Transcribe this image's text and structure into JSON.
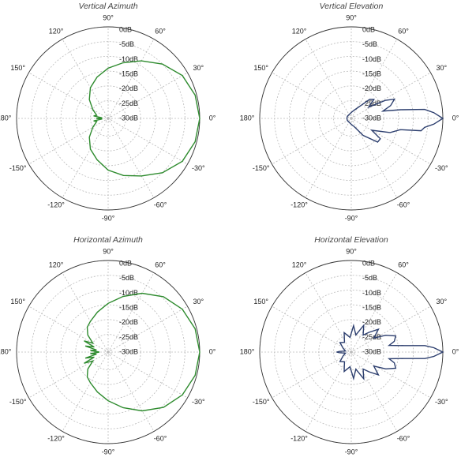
{
  "chart_data": [
    {
      "type": "polar",
      "title": "Vertical Azimuth",
      "color": "#2e8b2e",
      "rlim": [
        -31,
        0
      ],
      "rticks": [
        {
          "value": 0,
          "label": "0dB"
        },
        {
          "value": -5,
          "label": "-5dB"
        },
        {
          "value": -10,
          "label": "-10dB"
        },
        {
          "value": -15,
          "label": "-15dB"
        },
        {
          "value": -20,
          "label": "-20dB"
        },
        {
          "value": -25,
          "label": "-25dB"
        },
        {
          "value": -30,
          "label": "-30dB"
        }
      ],
      "thetaticks": [
        {
          "value": 90,
          "label": "90°"
        },
        {
          "value": 60,
          "label": "60°"
        },
        {
          "value": 30,
          "label": "30°"
        },
        {
          "value": 0,
          "label": "0°"
        },
        {
          "value": -30,
          "label": "-30°"
        },
        {
          "value": -60,
          "label": "-60°"
        },
        {
          "value": -90,
          "label": "-90°"
        },
        {
          "value": -120,
          "label": "-120°"
        },
        {
          "value": -150,
          "label": "-150°"
        },
        {
          "value": 180,
          "label": "180°"
        },
        {
          "value": 150,
          "label": "150°"
        },
        {
          "value": 120,
          "label": "120°"
        }
      ],
      "theta": [
        0,
        15,
        30,
        45,
        60,
        75,
        90,
        105,
        120,
        135,
        150,
        165,
        170,
        175,
        180,
        185,
        190,
        195,
        210,
        225,
        240,
        255,
        270,
        285,
        300,
        315,
        330,
        345
      ],
      "values": [
        0,
        -0.5,
        -2,
        -5,
        -8.5,
        -11.5,
        -14,
        -16.5,
        -19,
        -22,
        -25,
        -27,
        -26,
        -29,
        -27,
        -29,
        -26,
        -27,
        -25,
        -22,
        -19,
        -16.5,
        -13.5,
        -11,
        -8.5,
        -5,
        -2,
        -0.5
      ]
    },
    {
      "type": "polar",
      "title": "Vertical Elevation",
      "color": "#2c3e6e",
      "rlim": [
        -31,
        0
      ],
      "rticks": [
        {
          "value": 0,
          "label": "0dB"
        },
        {
          "value": -5,
          "label": "-5dB"
        },
        {
          "value": -10,
          "label": "-10dB"
        },
        {
          "value": -15,
          "label": "-15dB"
        },
        {
          "value": -20,
          "label": "-20dB"
        },
        {
          "value": -25,
          "label": "-25dB"
        },
        {
          "value": -30,
          "label": "-30dB"
        }
      ],
      "thetaticks": [
        {
          "value": 90,
          "label": "90°"
        },
        {
          "value": 60,
          "label": "60°"
        },
        {
          "value": 30,
          "label": "30°"
        },
        {
          "value": 0,
          "label": "0°"
        },
        {
          "value": -30,
          "label": "-30°"
        },
        {
          "value": -60,
          "label": "-60°"
        },
        {
          "value": -90,
          "label": "-90°"
        },
        {
          "value": -120,
          "label": "-120°"
        },
        {
          "value": -150,
          "label": "-150°"
        },
        {
          "value": 180,
          "label": "180°"
        },
        {
          "value": 150,
          "label": "150°"
        },
        {
          "value": 120,
          "label": "120°"
        }
      ],
      "theta": [
        0,
        4,
        7,
        10,
        13,
        18,
        24,
        28,
        33,
        40,
        46,
        55,
        70,
        90,
        120,
        150,
        180,
        210,
        240,
        270,
        290,
        305,
        318,
        325,
        330,
        340,
        347,
        350,
        353,
        356
      ],
      "values": [
        0,
        -3,
        -6,
        -14,
        -20,
        -17,
        -15,
        -18,
        -24,
        -21,
        -22,
        -26,
        -28,
        -29,
        -29.5,
        -29.5,
        -29.5,
        -29.5,
        -29.5,
        -29,
        -28,
        -24,
        -19,
        -19,
        -23,
        -17,
        -14,
        -7,
        -6,
        -3
      ]
    },
    {
      "type": "polar",
      "title": "Horizontal Azimuth",
      "color": "#2e8b2e",
      "rlim": [
        -31,
        0
      ],
      "rticks": [
        {
          "value": 0,
          "label": "0dB"
        },
        {
          "value": -5,
          "label": "-5dB"
        },
        {
          "value": -10,
          "label": "-10dB"
        },
        {
          "value": -15,
          "label": "-15dB"
        },
        {
          "value": -20,
          "label": "-20dB"
        },
        {
          "value": -25,
          "label": "-25dB"
        },
        {
          "value": -30,
          "label": "-30dB"
        }
      ],
      "thetaticks": [
        {
          "value": 90,
          "label": "90°"
        },
        {
          "value": 60,
          "label": "60°"
        },
        {
          "value": 30,
          "label": "30°"
        },
        {
          "value": 0,
          "label": "0°"
        },
        {
          "value": -30,
          "label": "-30°"
        },
        {
          "value": -60,
          "label": "-60°"
        },
        {
          "value": -90,
          "label": "-90°"
        },
        {
          "value": -120,
          "label": "-120°"
        },
        {
          "value": -150,
          "label": "-150°"
        },
        {
          "value": 180,
          "label": "180°"
        },
        {
          "value": 150,
          "label": "150°"
        },
        {
          "value": 120,
          "label": "120°"
        }
      ],
      "theta": [
        0,
        15,
        30,
        45,
        60,
        75,
        90,
        105,
        120,
        130,
        140,
        150,
        155,
        160,
        165,
        170,
        175,
        180,
        185,
        190,
        195,
        200,
        205,
        210,
        220,
        230,
        240,
        255,
        270,
        285,
        300,
        315,
        330,
        345
      ],
      "values": [
        0,
        -0.5,
        -2,
        -4.5,
        -8,
        -11.5,
        -14.5,
        -17,
        -19,
        -20,
        -22,
        -25,
        -22,
        -26,
        -23,
        -27,
        -25,
        -28,
        -25,
        -27,
        -23,
        -26,
        -22,
        -25,
        -22,
        -20,
        -19,
        -17,
        -14.5,
        -11.5,
        -8,
        -4.5,
        -2,
        -0.5
      ]
    },
    {
      "type": "polar",
      "title": "Horizontal Elevation",
      "color": "#2c3e6e",
      "rlim": [
        -31,
        0
      ],
      "rticks": [
        {
          "value": 0,
          "label": "0dB"
        },
        {
          "value": -5,
          "label": "-5dB"
        },
        {
          "value": -10,
          "label": "-10dB"
        },
        {
          "value": -15,
          "label": "-15dB"
        },
        {
          "value": -20,
          "label": "-20dB"
        },
        {
          "value": -25,
          "label": "-25dB"
        },
        {
          "value": -30,
          "label": "-30dB"
        }
      ],
      "thetaticks": [
        {
          "value": 90,
          "label": "90°"
        },
        {
          "value": 60,
          "label": "60°"
        },
        {
          "value": 30,
          "label": "30°"
        },
        {
          "value": 0,
          "label": "0°"
        },
        {
          "value": -30,
          "label": "-30°"
        },
        {
          "value": -60,
          "label": "-60°"
        },
        {
          "value": -90,
          "label": "-90°"
        },
        {
          "value": -120,
          "label": "-120°"
        },
        {
          "value": -150,
          "label": "-150°"
        },
        {
          "value": 180,
          "label": "180°"
        },
        {
          "value": 150,
          "label": "150°"
        },
        {
          "value": 120,
          "label": "120°"
        }
      ],
      "theta": [
        0,
        3,
        5,
        7,
        10,
        14,
        20,
        26,
        32,
        40,
        48,
        55,
        65,
        75,
        85,
        95,
        110,
        125,
        140,
        155,
        170,
        177,
        180,
        183,
        190,
        205,
        220,
        235,
        250,
        265,
        275,
        285,
        295,
        305,
        312,
        320,
        328,
        334,
        340,
        346,
        350,
        353,
        355,
        357
      ],
      "values": [
        0,
        -3,
        -6,
        -13,
        -18,
        -16,
        -15,
        -18,
        -22,
        -19,
        -22,
        -24,
        -21,
        -25,
        -22,
        -26,
        -24,
        -27,
        -26,
        -28,
        -29,
        -27,
        -26,
        -27,
        -29,
        -28,
        -26,
        -27,
        -24,
        -26,
        -22,
        -25,
        -21,
        -24,
        -22,
        -19,
        -22,
        -18,
        -15,
        -16,
        -18,
        -13,
        -6,
        -3
      ]
    }
  ]
}
